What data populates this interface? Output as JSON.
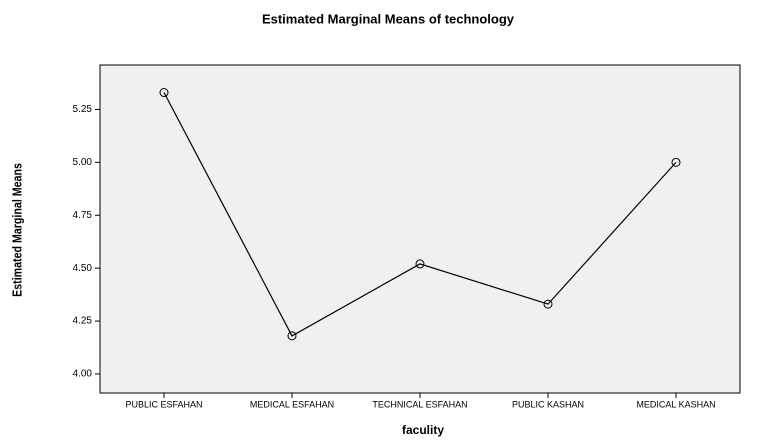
{
  "chart_data": {
    "type": "line",
    "title": "Estimated Marginal Means of technology",
    "x_label": "faculity",
    "y_label": "Estimated Marginal Means",
    "categories": [
      "PUBLIC ESFAHAN",
      "MEDICAL ESFAHAN",
      "TECHNICAL ESFAHAN",
      "PUBLIC KASHAN",
      "MEDICAL KASHAN"
    ],
    "values": [
      5.33,
      4.18,
      4.52,
      4.33,
      5.0
    ],
    "color": "#000000",
    "ylim": [
      3.91,
      5.46
    ],
    "yticks": [
      {
        "value": 4,
        "label": "4.00"
      },
      4.25,
      {
        "value": 4.5,
        "label": "4.50"
      },
      4.75,
      {
        "value": 5,
        "label": "5.00"
      },
      5.25
    ]
  }
}
